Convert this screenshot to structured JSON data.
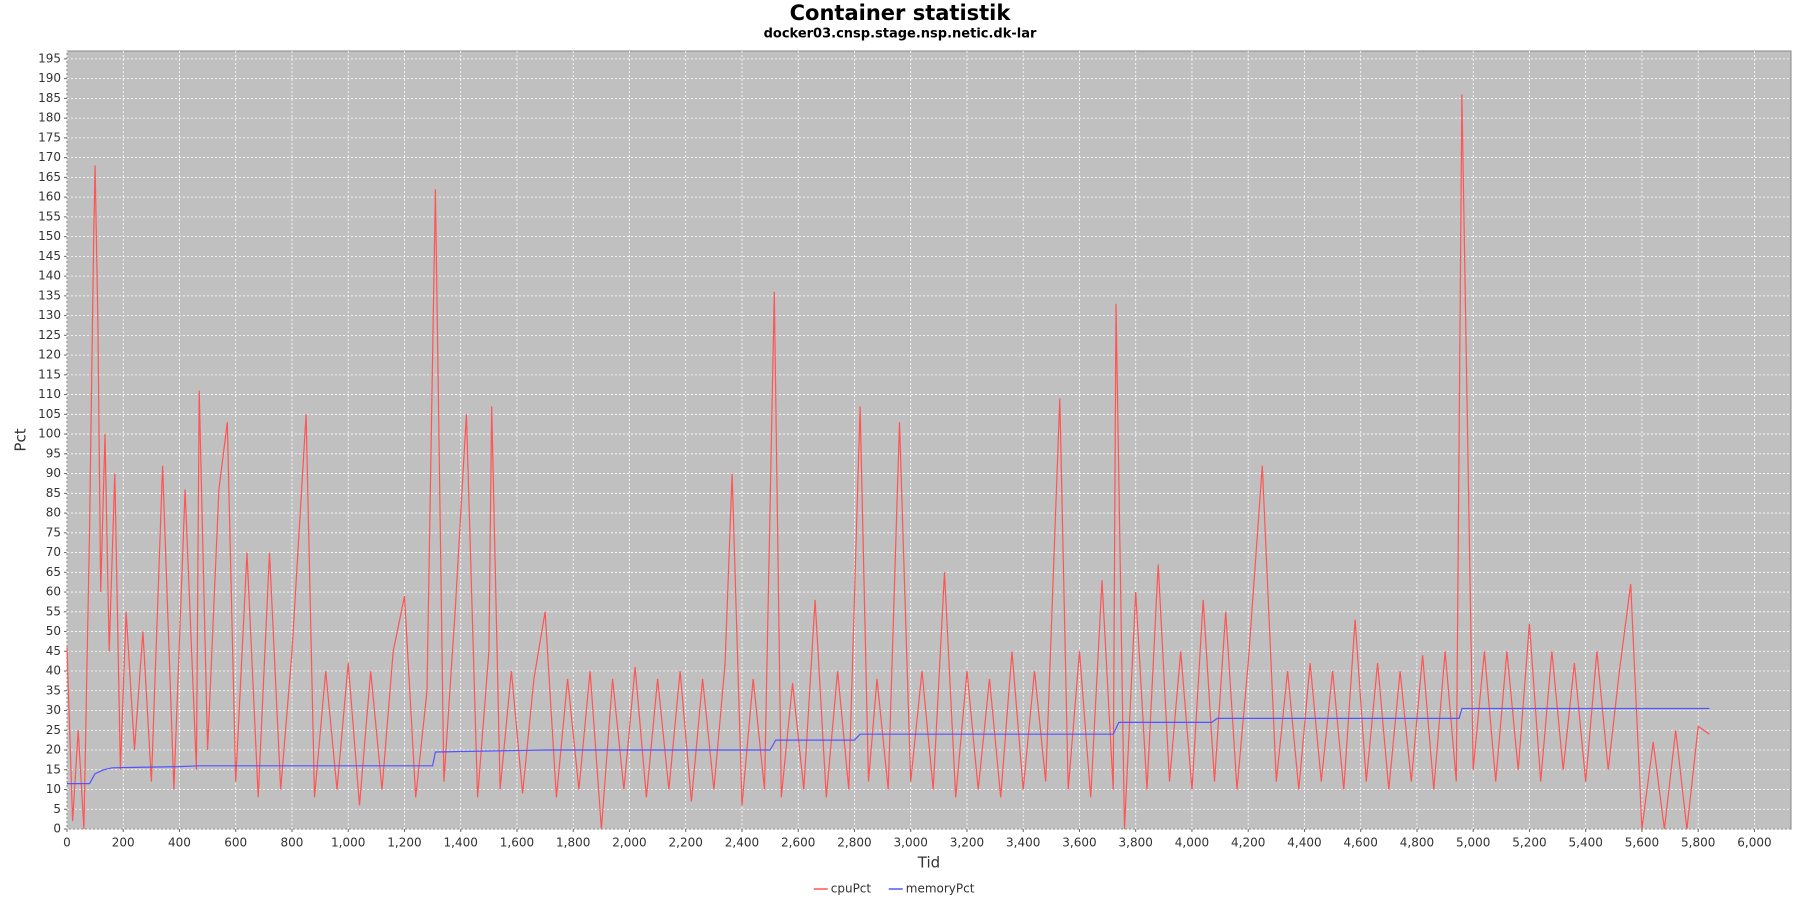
{
  "chart_data": {
    "type": "line",
    "title": "Container statistik",
    "subtitle": "docker03.cnsp.stage.nsp.netic.dk-lar",
    "x_label": "Tid",
    "y_label": "Pct",
    "grid": true,
    "legend": "bottom",
    "xlim": [
      0,
      6130
    ],
    "ylim": [
      0,
      197
    ],
    "xticks": [
      0,
      200,
      400,
      600,
      800,
      {
        "value": 1000,
        "label": "1,000"
      },
      {
        "value": 1200,
        "label": "1,200"
      },
      {
        "value": 1400,
        "label": "1,400"
      },
      {
        "value": 1600,
        "label": "1,600"
      },
      {
        "value": 1800,
        "label": "1,800"
      },
      {
        "value": 2000,
        "label": "2,000"
      },
      {
        "value": 2200,
        "label": "2,200"
      },
      {
        "value": 2400,
        "label": "2,400"
      },
      {
        "value": 2600,
        "label": "2,600"
      },
      {
        "value": 2800,
        "label": "2,800"
      },
      {
        "value": 3000,
        "label": "3,000"
      },
      {
        "value": 3200,
        "label": "3,200"
      },
      {
        "value": 3400,
        "label": "3,400"
      },
      {
        "value": 3600,
        "label": "3,600"
      },
      {
        "value": 3800,
        "label": "3,800"
      },
      {
        "value": 4000,
        "label": "4,000"
      },
      {
        "value": 4200,
        "label": "4,200"
      },
      {
        "value": 4400,
        "label": "4,400"
      },
      {
        "value": 4600,
        "label": "4,600"
      },
      {
        "value": 4800,
        "label": "4,800"
      },
      {
        "value": 5000,
        "label": "5,000"
      },
      {
        "value": 5200,
        "label": "5,200"
      },
      {
        "value": 5400,
        "label": "5,400"
      },
      {
        "value": 5600,
        "label": "5,600"
      },
      {
        "value": 5800,
        "label": "5,800"
      },
      {
        "value": 6000,
        "label": "6,000"
      }
    ],
    "yticks": [
      0,
      5,
      10,
      15,
      20,
      25,
      30,
      35,
      40,
      45,
      50,
      55,
      60,
      65,
      70,
      75,
      80,
      85,
      90,
      95,
      100,
      105,
      110,
      115,
      120,
      125,
      130,
      135,
      140,
      145,
      150,
      155,
      160,
      165,
      170,
      175,
      180,
      185,
      190,
      195
    ],
    "series": [
      {
        "name": "cpuPct",
        "color": "#ff5555",
        "x": [
          0,
          20,
          40,
          60,
          80,
          95,
          100,
          110,
          120,
          135,
          150,
          170,
          190,
          210,
          240,
          270,
          300,
          340,
          380,
          420,
          460,
          470,
          500,
          540,
          570,
          600,
          640,
          680,
          720,
          760,
          800,
          850,
          880,
          920,
          960,
          1000,
          1040,
          1080,
          1120,
          1160,
          1200,
          1240,
          1280,
          1310,
          1340,
          1380,
          1420,
          1460,
          1500,
          1510,
          1540,
          1580,
          1620,
          1660,
          1700,
          1740,
          1780,
          1820,
          1860,
          1900,
          1940,
          1980,
          2020,
          2060,
          2100,
          2140,
          2180,
          2220,
          2260,
          2300,
          2340,
          2365,
          2400,
          2440,
          2480,
          2515,
          2540,
          2580,
          2620,
          2660,
          2700,
          2740,
          2780,
          2820,
          2850,
          2880,
          2920,
          2960,
          3000,
          3040,
          3080,
          3120,
          3160,
          3200,
          3240,
          3280,
          3320,
          3360,
          3400,
          3440,
          3480,
          3530,
          3560,
          3600,
          3640,
          3680,
          3720,
          3730,
          3760,
          3800,
          3840,
          3880,
          3920,
          3960,
          4000,
          4040,
          4080,
          4120,
          4160,
          4200,
          4250,
          4300,
          4340,
          4380,
          4420,
          4460,
          4500,
          4540,
          4580,
          4620,
          4660,
          4700,
          4740,
          4780,
          4820,
          4860,
          4900,
          4940,
          4960,
          5000,
          5040,
          5080,
          5120,
          5160,
          5200,
          5240,
          5280,
          5320,
          5360,
          5400,
          5440,
          5480,
          5520,
          5560,
          5600,
          5640,
          5680,
          5720,
          5760,
          5800,
          5840
        ],
        "values": [
          46,
          2,
          25,
          0,
          75,
          150,
          168,
          128,
          60,
          100,
          45,
          90,
          15,
          55,
          20,
          50,
          12,
          92,
          10,
          86,
          15,
          111,
          20,
          86,
          103,
          12,
          70,
          8,
          70,
          10,
          45,
          105,
          8,
          40,
          10,
          42,
          6,
          40,
          10,
          45,
          59,
          8,
          35,
          162,
          12,
          55,
          105,
          8,
          45,
          107,
          10,
          40,
          9,
          38,
          55,
          8,
          38,
          10,
          40,
          0,
          38,
          10,
          41,
          8,
          38,
          10,
          40,
          7,
          38,
          10,
          42,
          90,
          6,
          38,
          10,
          136,
          8,
          37,
          10,
          58,
          8,
          40,
          10,
          107,
          12,
          38,
          10,
          103,
          12,
          40,
          10,
          65,
          8,
          40,
          10,
          38,
          8,
          45,
          10,
          40,
          12,
          109,
          10,
          45,
          8,
          63,
          10,
          133,
          0,
          60,
          10,
          67,
          12,
          45,
          10,
          58,
          12,
          55,
          10,
          42,
          92,
          12,
          40,
          10,
          42,
          12,
          40,
          10,
          53,
          12,
          42,
          10,
          40,
          12,
          44,
          10,
          45,
          12,
          186,
          15,
          45,
          12,
          45,
          15,
          52,
          12,
          45,
          15,
          42,
          12,
          45,
          15,
          40,
          62,
          0,
          22,
          0,
          25,
          0,
          26,
          24
        ]
      },
      {
        "name": "memoryPct",
        "color": "#5555ff",
        "x": [
          0,
          80,
          100,
          130,
          160,
          400,
          470,
          1300,
          1310,
          1700,
          2500,
          2520,
          2800,
          2820,
          3720,
          3740,
          4070,
          4090,
          4950,
          4960,
          5840
        ],
        "values": [
          11.5,
          11.5,
          14,
          15,
          15.5,
          15.8,
          16,
          16,
          19.5,
          20,
          20,
          22.5,
          22.5,
          24,
          24,
          27,
          27,
          28,
          28,
          30.5,
          30.5
        ]
      }
    ]
  }
}
